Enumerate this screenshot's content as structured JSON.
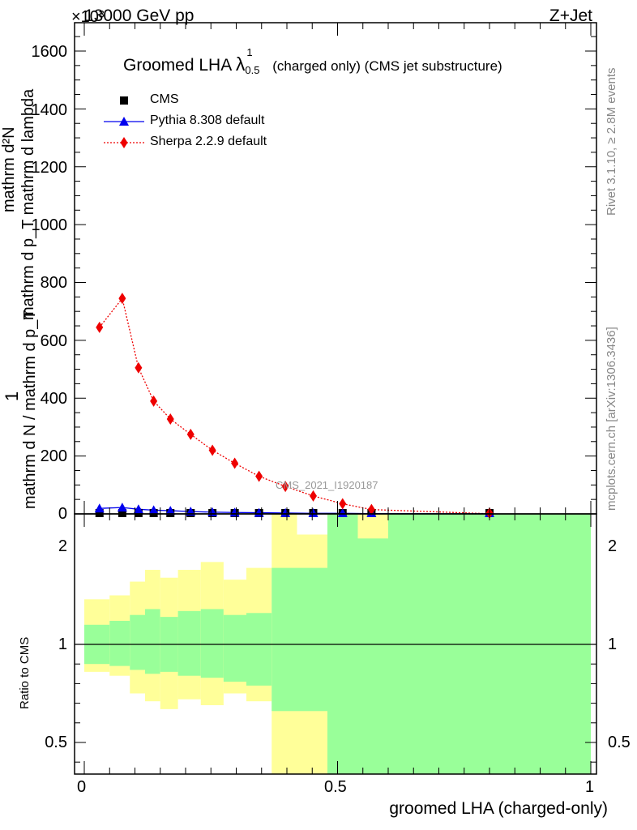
{
  "header": {
    "energy": "13000 GeV pp",
    "process": "Z+Jet",
    "exponent": "×10³"
  },
  "side": {
    "rivet": "Rivet 3.1.10, ≥ 2.8M events",
    "mcplots": "mcplots.cern.ch [arXiv:1306.3436]"
  },
  "chart_data": {
    "type": "line",
    "title": "Groomed LHA",
    "title_symbol": "λ",
    "title_sup": "1",
    "title_sub": "0.5",
    "title_tail": "(charged only) (CMS jet substructure)",
    "watermark": "CMS_2021_I1920187",
    "xlabel": "groomed LHA (charged-only)",
    "ylabel_top": {
      "numerator": "1",
      "denominator": "mathrm d N / mathrm d p_T"
    },
    "ylabel_frac_num": "mathrm d²N",
    "ylabel_frac_den": "mathrm d p_T mathrm d lambda",
    "ylabel_ratio": "Ratio to CMS",
    "xlim": [
      0,
      1
    ],
    "ylim_top": [
      0,
      1680
    ],
    "ylim_ratio": [
      0.35,
      2.25
    ],
    "x_ticks": [
      "0",
      "0.5",
      "1"
    ],
    "y_ticks_top": [
      "0",
      "200",
      "400",
      "600",
      "800",
      "1000",
      "1200",
      "1400",
      "1600"
    ],
    "y_ticks_ratio": [
      "0.5",
      "1",
      "2"
    ],
    "legend_position": "top-left",
    "series": [
      {
        "name": "CMS",
        "color": "#000000",
        "marker": "square",
        "x": [
          0.03,
          0.075,
          0.107,
          0.137,
          0.17,
          0.21,
          0.253,
          0.297,
          0.345,
          0.397,
          0.452,
          0.51,
          0.567,
          0.8
        ],
        "y": [
          2,
          3,
          3,
          2,
          2,
          2,
          2,
          2,
          2,
          2,
          2,
          2,
          2,
          1
        ]
      },
      {
        "name": "Pythia 8.308 default",
        "color": "#0000ee",
        "marker": "triangle",
        "x": [
          0.03,
          0.075,
          0.107,
          0.137,
          0.17,
          0.21,
          0.253,
          0.297,
          0.345,
          0.397,
          0.452,
          0.51,
          0.567,
          0.8
        ],
        "y": [
          19,
          22,
          16,
          13,
          11,
          8,
          6,
          5,
          4,
          3,
          2,
          2,
          1,
          0.3
        ]
      },
      {
        "name": "Sherpa 2.2.9 default",
        "color": "#ee0000",
        "marker": "diamond",
        "x": [
          0.03,
          0.075,
          0.107,
          0.137,
          0.17,
          0.21,
          0.253,
          0.297,
          0.345,
          0.397,
          0.452,
          0.51,
          0.567,
          0.8
        ],
        "y": [
          645,
          745,
          505,
          390,
          328,
          275,
          220,
          175,
          130,
          95,
          62,
          35,
          15,
          0.5
        ]
      }
    ],
    "ratio_bins": {
      "edges": [
        0,
        0.05,
        0.09,
        0.12,
        0.15,
        0.185,
        0.23,
        0.275,
        0.32,
        0.37,
        0.42,
        0.48,
        0.54,
        0.6,
        1.0
      ],
      "inner_lo": [
        0.9,
        0.89,
        0.87,
        0.85,
        0.86,
        0.84,
        0.83,
        0.81,
        0.79,
        0.66,
        0.66,
        0.3,
        0.3,
        0.3
      ],
      "inner_hi": [
        1.1,
        1.12,
        1.15,
        1.18,
        1.14,
        1.17,
        1.18,
        1.15,
        1.16,
        1.39,
        1.39,
        1.68,
        1.54,
        1.92
      ],
      "outer_lo": [
        0.86,
        0.84,
        0.75,
        0.71,
        0.67,
        0.72,
        0.69,
        0.75,
        0.71,
        0.3,
        0.3,
        0.3,
        0.58,
        0.3
      ],
      "outer_hi": [
        1.23,
        1.25,
        1.32,
        1.38,
        1.34,
        1.38,
        1.42,
        1.33,
        1.39,
        1.71,
        1.56,
        2.3,
        1.91,
        2.3
      ]
    },
    "colors": {
      "inner_band": "#99ff99",
      "outer_band": "#ffff99"
    }
  }
}
